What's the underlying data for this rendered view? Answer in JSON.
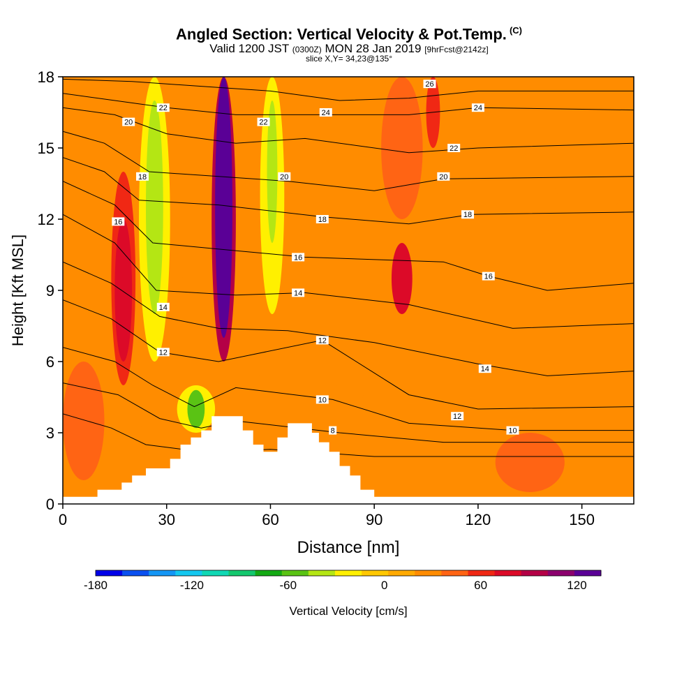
{
  "header": {
    "title": "Angled Section: Vertical Velocity & Pot.Temp.",
    "title_mark": "(C)",
    "valid_prefix": "Valid 1200 JST",
    "valid_zulu": "(0300Z)",
    "valid_date": "MON 28 Jan 2019",
    "forecast": "[9hrFcst@2142z]",
    "slice": "slice X,Y= 34,23@135°"
  },
  "chart_data": {
    "type": "heatmap",
    "title": "Angled Section: Vertical Velocity & Pot.Temp.",
    "xlabel": "Distance [nm]",
    "ylabel": "Height [Kft MSL]",
    "xlim": [
      0,
      165
    ],
    "ylim": [
      0,
      18
    ],
    "x_ticks": [
      0,
      30,
      60,
      90,
      120,
      150
    ],
    "y_ticks": [
      0,
      3,
      6,
      9,
      12,
      15,
      18
    ],
    "colorbar": {
      "label": "Vertical Velocity [cm/s]",
      "range": [
        -180,
        135
      ],
      "step": 15,
      "ticks": [
        -180,
        -120,
        -60,
        0,
        60,
        120
      ],
      "colors": [
        "#0000e8",
        "#0a50f0",
        "#1496f5",
        "#14c8f0",
        "#10d8b4",
        "#14c86e",
        "#14aa14",
        "#5ac314",
        "#b4e614",
        "#fff000",
        "#ffc800",
        "#ffaa00",
        "#ff8c00",
        "#ff6414",
        "#f02814",
        "#dc0a28",
        "#b40046",
        "#8c006e",
        "#5a0096"
      ]
    },
    "terrain_nm_kft": [
      [
        0,
        0.3
      ],
      [
        10,
        0.3
      ],
      [
        10,
        0.6
      ],
      [
        17,
        0.6
      ],
      [
        17,
        0.9
      ],
      [
        20,
        0.9
      ],
      [
        20,
        1.2
      ],
      [
        24,
        1.2
      ],
      [
        24,
        1.5
      ],
      [
        31,
        1.5
      ],
      [
        31,
        1.9
      ],
      [
        34,
        1.9
      ],
      [
        34,
        2.5
      ],
      [
        37,
        2.5
      ],
      [
        37,
        2.8
      ],
      [
        40,
        2.8
      ],
      [
        40,
        3.1
      ],
      [
        43,
        3.1
      ],
      [
        43,
        3.7
      ],
      [
        52,
        3.7
      ],
      [
        52,
        3.1
      ],
      [
        55,
        3.1
      ],
      [
        55,
        2.5
      ],
      [
        58,
        2.5
      ],
      [
        58,
        2.2
      ],
      [
        62,
        2.2
      ],
      [
        62,
        2.8
      ],
      [
        65,
        2.8
      ],
      [
        65,
        3.4
      ],
      [
        72,
        3.4
      ],
      [
        72,
        3.0
      ],
      [
        74,
        3.0
      ],
      [
        74,
        2.6
      ],
      [
        77,
        2.6
      ],
      [
        77,
        2.2
      ],
      [
        80,
        2.2
      ],
      [
        80,
        1.6
      ],
      [
        83,
        1.6
      ],
      [
        83,
        1.2
      ],
      [
        86,
        1.2
      ],
      [
        86,
        0.6
      ],
      [
        90,
        0.6
      ],
      [
        90,
        0.3
      ],
      [
        165,
        0.3
      ]
    ],
    "theta_contour_labels": [
      {
        "value": "26",
        "x": 106,
        "y": 17.7
      },
      {
        "value": "24",
        "x": 76,
        "y": 16.5
      },
      {
        "value": "24",
        "x": 120,
        "y": 16.7
      },
      {
        "value": "22",
        "x": 29,
        "y": 16.7
      },
      {
        "value": "22",
        "x": 58,
        "y": 16.1
      },
      {
        "value": "22",
        "x": 113,
        "y": 15.0
      },
      {
        "value": "20",
        "x": 19,
        "y": 16.1
      },
      {
        "value": "20",
        "x": 64,
        "y": 13.8
      },
      {
        "value": "20",
        "x": 110,
        "y": 13.8
      },
      {
        "value": "18",
        "x": 23,
        "y": 13.8
      },
      {
        "value": "18",
        "x": 75,
        "y": 12.0
      },
      {
        "value": "18",
        "x": 117,
        "y": 12.2
      },
      {
        "value": "16",
        "x": 16,
        "y": 11.9
      },
      {
        "value": "16",
        "x": 68,
        "y": 10.4
      },
      {
        "value": "16",
        "x": 123,
        "y": 9.6
      },
      {
        "value": "14",
        "x": 29,
        "y": 8.3
      },
      {
        "value": "14",
        "x": 68,
        "y": 8.9
      },
      {
        "value": "14",
        "x": 122,
        "y": 5.7
      },
      {
        "value": "12",
        "x": 29,
        "y": 6.4
      },
      {
        "value": "12",
        "x": 75,
        "y": 6.9
      },
      {
        "value": "12",
        "x": 114,
        "y": 3.7
      },
      {
        "value": "10",
        "x": 75,
        "y": 4.4
      },
      {
        "value": "10",
        "x": 130,
        "y": 3.1
      },
      {
        "value": "8",
        "x": 78,
        "y": 3.1
      }
    ],
    "theta_levels_visible": [
      8,
      10,
      12,
      14,
      16,
      18,
      20,
      22,
      24,
      26
    ],
    "velocity_features": [
      {
        "kind": "updraft",
        "x": 46,
        "y_range": [
          5.5,
          18
        ],
        "peak_cm_s": 130
      },
      {
        "kind": "downdraft",
        "x": 26,
        "y_range": [
          6,
          18
        ],
        "peak_cm_s": -60
      },
      {
        "kind": "downdraft",
        "x": 60,
        "y_range": [
          8,
          18
        ],
        "peak_cm_s": -45
      },
      {
        "kind": "downdraft",
        "x": 39,
        "y_range": [
          3,
          5
        ],
        "peak_cm_s": -75
      },
      {
        "kind": "updraft",
        "x": 17,
        "y_range": [
          6,
          14
        ],
        "peak_cm_s": 50
      },
      {
        "kind": "updraft",
        "x": 98,
        "y_range": [
          8,
          11
        ],
        "peak_cm_s": 55
      },
      {
        "kind": "updraft",
        "x": 107,
        "y_range": [
          15,
          18
        ],
        "peak_cm_s": 45
      }
    ]
  }
}
